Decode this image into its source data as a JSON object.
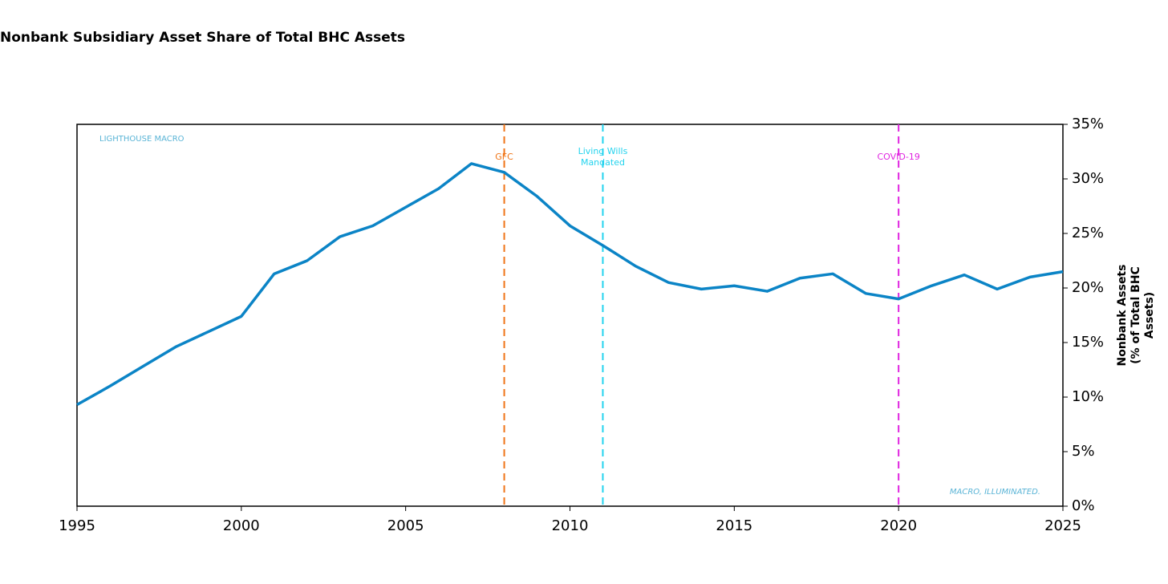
{
  "chart_data": {
    "type": "line",
    "title": "Nonbank Subsidiary Asset Share of Total BHC Assets",
    "y_label": [
      "Nonbank Assets",
      "(% of Total BHC",
      "Assets)"
    ],
    "watermark_top": "LIGHTHOUSE MACRO",
    "watermark_bottom": "MACRO, ILLUMINATED.",
    "x": [
      1995,
      1996,
      1997,
      1998,
      1999,
      2000,
      2001,
      2002,
      2003,
      2004,
      2005,
      2006,
      2007,
      2008,
      2009,
      2010,
      2011,
      2012,
      2013,
      2014,
      2015,
      2016,
      2017,
      2018,
      2019,
      2020,
      2021,
      2022,
      2023,
      2024,
      2025
    ],
    "series": [
      {
        "color": "#0b84c6",
        "values": [
          9.3,
          11.0,
          12.8,
          14.6,
          16.0,
          17.4,
          21.3,
          22.5,
          24.7,
          25.7,
          27.4,
          29.1,
          31.4,
          30.6,
          28.4,
          25.7,
          23.9,
          22.0,
          20.5,
          19.9,
          20.2,
          19.7,
          20.9,
          21.3,
          19.5,
          19.0,
          20.2,
          21.2,
          19.9,
          21.0,
          21.5
        ]
      }
    ],
    "events": [
      {
        "x": 2008,
        "label": [
          "GFC"
        ],
        "color": "#f07416"
      },
      {
        "x": 2011,
        "label": [
          "Living Wills",
          "Mandated"
        ],
        "color": "#22d3ee"
      },
      {
        "x": 2020,
        "label": [
          "COVID-19"
        ],
        "color": "#e024e0"
      }
    ],
    "xlim": [
      1995,
      2025
    ],
    "xticks": [
      1995,
      2000,
      2005,
      2010,
      2015,
      2020,
      2025
    ],
    "ylim": [
      0,
      35
    ],
    "yticks": [
      {
        "value": 0,
        "label": "0%"
      },
      {
        "value": 5,
        "label": "5%"
      },
      {
        "value": 10,
        "label": "10%"
      },
      {
        "value": 15,
        "label": "15%"
      },
      {
        "value": 20,
        "label": "20%"
      },
      {
        "value": 25,
        "label": "25%"
      },
      {
        "value": 30,
        "label": "30%"
      },
      {
        "value": 35,
        "label": "35%"
      }
    ],
    "grid": false
  }
}
